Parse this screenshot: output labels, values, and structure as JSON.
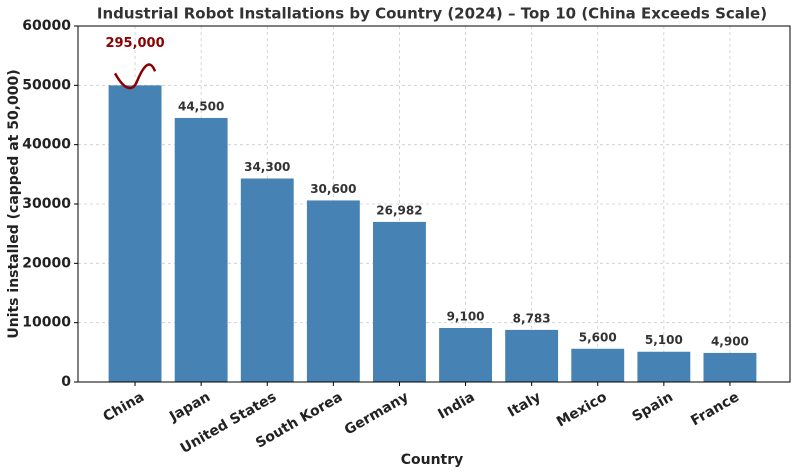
{
  "chart_data": {
    "type": "bar",
    "title": "Industrial Robot Installations by Country (2024) – Top 10 (China Exceeds Scale)",
    "x_label": "Country",
    "y_label": "Units installed (capped at 50,000)",
    "categories": [
      "China",
      "Japan",
      "United States",
      "South Korea",
      "Germany",
      "India",
      "Italy",
      "Mexico",
      "Spain",
      "France"
    ],
    "values": [
      295000,
      44500,
      34300,
      30600,
      26982,
      9100,
      8783,
      5600,
      5100,
      4900
    ],
    "value_labels": [
      "295,000",
      "44,500",
      "34,300",
      "30,600",
      "26,982",
      "9,100",
      "8,783",
      "5,600",
      "5,100",
      "4,900"
    ],
    "value_cap": 50000,
    "color": "#4682b4",
    "over_cap_color": "#8b0000",
    "ylim": [
      0,
      60000
    ],
    "yticks": [
      0,
      10000,
      20000,
      30000,
      40000,
      50000,
      60000
    ],
    "grid": true
  }
}
